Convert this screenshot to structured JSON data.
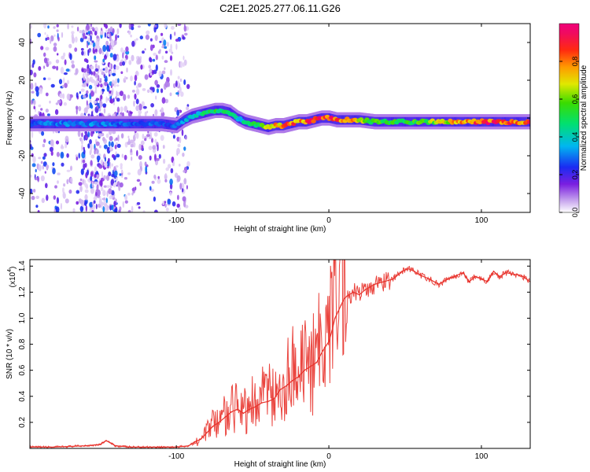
{
  "figure_title": "C2E1.2025.277.06.11.G26",
  "chart_data": [
    {
      "type": "heatmap",
      "title": "C2E1.2025.277.06.11.G26",
      "xlabel": "Height of straight line (km)",
      "ylabel": "Frequency (Hz)",
      "xlim": [
        -196,
        132
      ],
      "ylim": [
        -50,
        50
      ],
      "xticks": [
        -100,
        0,
        100
      ],
      "xtick_labels": [
        "-100",
        "0",
        "100"
      ],
      "yticks": [
        -40,
        -20,
        0,
        20,
        40
      ],
      "ytick_labels": [
        "-40",
        "-20",
        "0",
        "20",
        "40"
      ],
      "ridge_x": [
        -196,
        -160,
        -130,
        -110,
        -100,
        -95,
        -90,
        -85,
        -80,
        -75,
        -70,
        -65,
        -60,
        -55,
        -50,
        -45,
        -40,
        -35,
        -30,
        -25,
        -20,
        -15,
        -10,
        -5,
        0,
        5,
        10,
        20,
        30,
        60,
        100,
        132
      ],
      "ridge_freq": [
        -3,
        -3,
        -3,
        -3,
        -4,
        -1,
        1,
        2,
        3,
        4,
        4,
        3,
        0,
        -2,
        -3,
        -4,
        -5,
        -4,
        -4,
        -3,
        -2,
        -2,
        -1,
        0,
        0,
        -1,
        -1,
        -1,
        -2,
        -2,
        -2,
        -2
      ],
      "ridge_amplitude": [
        0.3,
        0.35,
        0.3,
        0.3,
        0.3,
        0.35,
        0.4,
        0.45,
        0.5,
        0.55,
        0.55,
        0.5,
        0.45,
        0.45,
        0.5,
        0.6,
        0.7,
        0.8,
        0.85,
        0.9,
        0.85,
        0.9,
        0.95,
        0.95,
        1.0,
        0.9,
        0.85,
        0.75,
        0.6,
        0.6,
        0.95,
        0.9
      ],
      "noise_region_x": [
        -196,
        -100
      ],
      "colorbar": {
        "label": "Normalized spectral amplitude",
        "range": [
          0,
          1
        ],
        "ticks": [
          "0.0",
          "0.2",
          "0.4",
          "0.6",
          "0.8"
        ]
      }
    },
    {
      "type": "line",
      "xlabel": "Height of straight line (km)",
      "ylabel": "SNR (10 * v/v)",
      "y_multiplier_label": "(x10",
      "y_multiplier_exp": "4",
      "y_multiplier_close": ")",
      "xlim": [
        -196,
        132
      ],
      "ylim": [
        0,
        1.45
      ],
      "xticks": [
        -100,
        0,
        100
      ],
      "xtick_labels": [
        "-100",
        "0",
        "100"
      ],
      "yticks": [
        0.2,
        0.4,
        0.6,
        0.8,
        1.0,
        1.2,
        1.4
      ],
      "ytick_labels": [
        "0.2",
        "0.4",
        "0.6",
        "0.8",
        "1.0",
        "1.2",
        "1.4"
      ],
      "series": [
        {
          "name": "SNR",
          "color": "#e8312a",
          "x": [
            -196,
            -180,
            -160,
            -150,
            -146,
            -140,
            -130,
            -110,
            -100,
            -92,
            -88,
            -84,
            -80,
            -76,
            -72,
            -68,
            -64,
            -60,
            -56,
            -52,
            -48,
            -44,
            -40,
            -36,
            -32,
            -28,
            -24,
            -20,
            -16,
            -12,
            -8,
            -4,
            0,
            2,
            4,
            6,
            8,
            10,
            12,
            16,
            20,
            24,
            30,
            36,
            42,
            48,
            52,
            56,
            60,
            66,
            72,
            78,
            84,
            88,
            92,
            96,
            100,
            104,
            108,
            112,
            116,
            120,
            126,
            132
          ],
          "y": [
            0.01,
            0.01,
            0.02,
            0.03,
            0.06,
            0.02,
            0.01,
            0.01,
            0.01,
            0.02,
            0.05,
            0.07,
            0.12,
            0.17,
            0.2,
            0.24,
            0.28,
            0.3,
            0.27,
            0.3,
            0.32,
            0.35,
            0.36,
            0.38,
            0.45,
            0.48,
            0.52,
            0.55,
            0.6,
            0.63,
            0.66,
            0.75,
            0.82,
            0.9,
            1.0,
            1.05,
            1.1,
            1.15,
            1.17,
            1.2,
            1.18,
            1.22,
            1.26,
            1.28,
            1.3,
            1.36,
            1.38,
            1.36,
            1.33,
            1.3,
            1.26,
            1.3,
            1.33,
            1.35,
            1.28,
            1.32,
            1.3,
            1.28,
            1.36,
            1.32,
            1.35,
            1.34,
            1.33,
            1.28
          ]
        }
      ]
    }
  ]
}
